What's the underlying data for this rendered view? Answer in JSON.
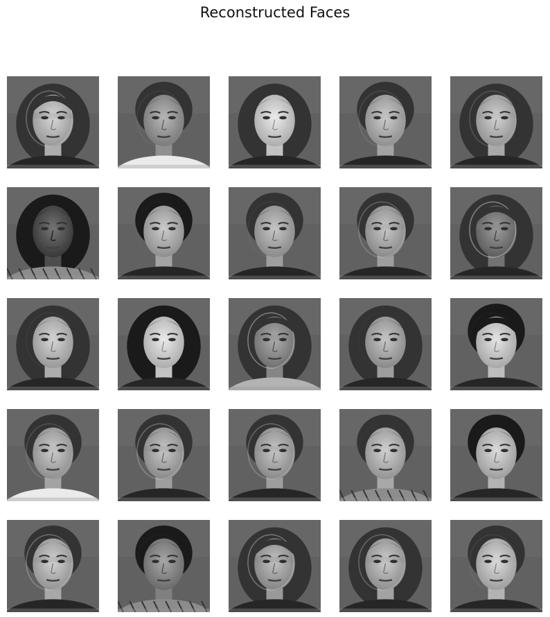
{
  "figure": {
    "title": "Reconstructed Faces"
  },
  "colors": {
    "background": "#ffffff",
    "title_text": "#111111"
  },
  "grid": {
    "rows": 5,
    "columns": 5
  },
  "faces": [
    {
      "id": "face-01",
      "sex": "female",
      "hair": "bob-bangs",
      "tone": 0.78,
      "ghost": 0.6,
      "collar": "dark"
    },
    {
      "id": "face-02",
      "sex": "female",
      "hair": "pulled-back",
      "tone": 0.66,
      "ghost": 0.15,
      "collar": "white"
    },
    {
      "id": "face-03",
      "sex": "female",
      "hair": "long",
      "tone": 0.86,
      "ghost": 0.0,
      "collar": "dark"
    },
    {
      "id": "face-04",
      "sex": "male",
      "hair": "short",
      "tone": 0.74,
      "ghost": 0.25,
      "collar": "dark"
    },
    {
      "id": "face-05",
      "sex": "female",
      "hair": "long",
      "tone": 0.76,
      "ghost": 0.35,
      "collar": "dark"
    },
    {
      "id": "face-06",
      "sex": "female",
      "hair": "curly",
      "tone": 0.4,
      "ghost": 0.0,
      "collar": "pattern"
    },
    {
      "id": "face-07",
      "sex": "male",
      "hair": "voluminous",
      "tone": 0.74,
      "ghost": 0.05,
      "collar": "dark"
    },
    {
      "id": "face-08",
      "sex": "male",
      "hair": "parted",
      "tone": 0.72,
      "ghost": 0.1,
      "collar": "dark"
    },
    {
      "id": "face-09",
      "sex": "female",
      "hair": "pulled-back",
      "tone": 0.72,
      "ghost": 0.5,
      "collar": "dark"
    },
    {
      "id": "face-10",
      "sex": "female",
      "hair": "bob",
      "tone": 0.55,
      "ghost": 0.85,
      "collar": "dark"
    },
    {
      "id": "face-11",
      "sex": "female",
      "hair": "curly-long",
      "tone": 0.78,
      "ghost": 0.1,
      "collar": "dark"
    },
    {
      "id": "face-12",
      "sex": "female",
      "hair": "long-dark",
      "tone": 0.86,
      "ghost": 0.0,
      "collar": "dark"
    },
    {
      "id": "face-13",
      "sex": "female",
      "hair": "bob",
      "tone": 0.62,
      "ghost": 0.8,
      "collar": "light"
    },
    {
      "id": "face-14",
      "sex": "male",
      "hair": "curly-short",
      "tone": 0.72,
      "ghost": 0.05,
      "collar": "dark"
    },
    {
      "id": "face-15",
      "sex": "female",
      "hair": "bangs-dark",
      "tone": 0.84,
      "ghost": 0.05,
      "collar": "dark"
    },
    {
      "id": "face-16",
      "sex": "male",
      "hair": "short",
      "tone": 0.74,
      "ghost": 0.3,
      "collar": "white"
    },
    {
      "id": "face-17",
      "sex": "female",
      "hair": "pulled-back",
      "tone": 0.72,
      "ghost": 0.6,
      "collar": "dark"
    },
    {
      "id": "face-18",
      "sex": "female",
      "hair": "pulled-back",
      "tone": 0.72,
      "ghost": 0.55,
      "collar": "dark"
    },
    {
      "id": "face-19",
      "sex": "female",
      "hair": "pulled-back",
      "tone": 0.76,
      "ghost": 0.05,
      "collar": "plaid"
    },
    {
      "id": "face-20",
      "sex": "female",
      "hair": "updo-dark",
      "tone": 0.8,
      "ghost": 0.0,
      "collar": "dark"
    },
    {
      "id": "face-21",
      "sex": "female",
      "hair": "pulled-back",
      "tone": 0.76,
      "ghost": 0.6,
      "collar": "dark"
    },
    {
      "id": "face-22",
      "sex": "female",
      "hair": "dark-pulled",
      "tone": 0.6,
      "ghost": 0.05,
      "collar": "stripe"
    },
    {
      "id": "face-23",
      "sex": "female",
      "hair": "bob",
      "tone": 0.7,
      "ghost": 0.7,
      "collar": "dark"
    },
    {
      "id": "face-24",
      "sex": "female",
      "hair": "long",
      "tone": 0.74,
      "ghost": 0.55,
      "collar": "dark"
    },
    {
      "id": "face-25",
      "sex": "male",
      "hair": "short",
      "tone": 0.8,
      "ghost": 0.15,
      "collar": "dark"
    }
  ]
}
